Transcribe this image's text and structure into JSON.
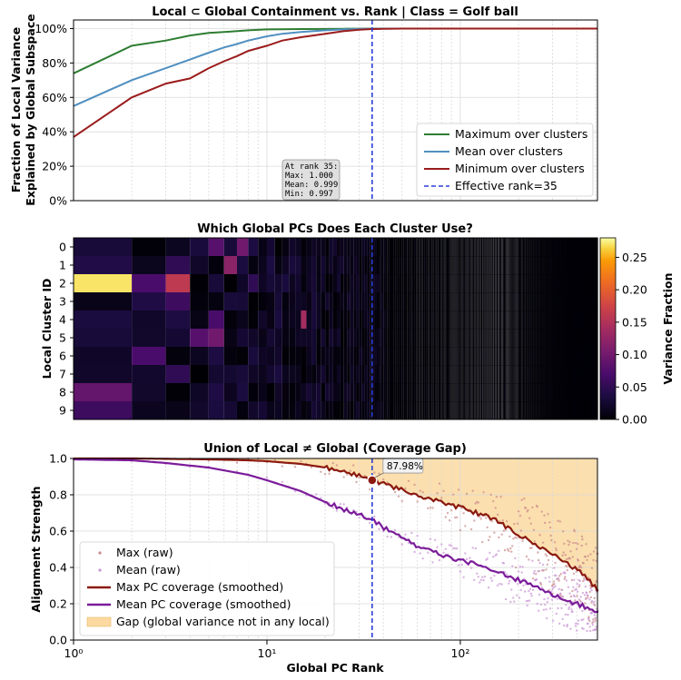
{
  "chart_data": [
    {
      "type": "line",
      "title": "Local ⊂ Global Containment vs. Rank | Class = Golf ball",
      "xlabel": "",
      "ylabel": "Fraction of Local Variance\nExplained by Global Subspace",
      "xscale": "log",
      "xlim": [
        1,
        512
      ],
      "ylim": [
        0,
        1.05
      ],
      "yticks": [
        "0%",
        "20%",
        "40%",
        "60%",
        "80%",
        "100%"
      ],
      "x": [
        1,
        2,
        3,
        4,
        5,
        6,
        7,
        8,
        10,
        12,
        15,
        20,
        25,
        30,
        35,
        40,
        50,
        100,
        200,
        512
      ],
      "series": [
        {
          "name": "Maximum over clusters",
          "color": "#2e7d32",
          "values": [
            0.74,
            0.9,
            0.93,
            0.96,
            0.975,
            0.98,
            0.985,
            0.99,
            0.995,
            0.996,
            0.997,
            0.998,
            0.999,
            0.9995,
            1.0,
            1.0,
            1.0,
            1.0,
            1.0,
            1.0
          ]
        },
        {
          "name": "Mean over clusters",
          "color": "#4f8fc0",
          "values": [
            0.55,
            0.7,
            0.77,
            0.82,
            0.86,
            0.89,
            0.91,
            0.93,
            0.955,
            0.97,
            0.98,
            0.99,
            0.995,
            0.998,
            0.999,
            1.0,
            1.0,
            1.0,
            1.0,
            1.0
          ]
        },
        {
          "name": "Minimum over clusters",
          "color": "#9b1c1c",
          "values": [
            0.37,
            0.6,
            0.68,
            0.71,
            0.77,
            0.81,
            0.84,
            0.87,
            0.9,
            0.93,
            0.95,
            0.97,
            0.985,
            0.993,
            0.997,
            0.999,
            1.0,
            1.0,
            1.0,
            1.0
          ]
        }
      ],
      "vline": {
        "x": 35,
        "label": "Effective rank=35",
        "color": "#2b3fd6"
      },
      "annotation": {
        "lines": [
          "At rank 35:",
          "Max: 1.000",
          "Mean: 0.999",
          "Min: 0.997"
        ]
      },
      "legend_location": "lower-right"
    },
    {
      "type": "heatmap",
      "title": "Which Global PCs Does Each Cluster Use?",
      "ylabel": "Local Cluster ID",
      "rows": [
        "0",
        "1",
        "2",
        "3",
        "4",
        "5",
        "6",
        "7",
        "8",
        "9"
      ],
      "xscale": "log",
      "xlim": [
        1,
        512
      ],
      "colorbar": {
        "label": "Variance Fraction",
        "min": 0.0,
        "max": 0.28,
        "ticks": [
          "0.00",
          "0.05",
          "0.10",
          "0.15",
          "0.20",
          "0.25"
        ]
      },
      "highlights": [
        {
          "row": 2,
          "rank": 1,
          "value": 0.27
        },
        {
          "row": 2,
          "rank": 2,
          "value": 0.07
        },
        {
          "row": 2,
          "rank": 3,
          "value": 0.16
        },
        {
          "row": 8,
          "rank": 1,
          "value": 0.09
        },
        {
          "row": 9,
          "rank": 1,
          "value": 0.06
        },
        {
          "row": 1,
          "rank": 1,
          "value": 0.04
        },
        {
          "row": 1,
          "rank": 3,
          "value": 0.05
        },
        {
          "row": 1,
          "rank": 6,
          "value": 0.12
        },
        {
          "row": 6,
          "rank": 2,
          "value": 0.07
        },
        {
          "row": 5,
          "rank": 4,
          "value": 0.08
        },
        {
          "row": 5,
          "rank": 5,
          "value": 0.1
        },
        {
          "row": 4,
          "rank": 5,
          "value": 0.07
        },
        {
          "row": 4,
          "rank": 15,
          "value": 0.14
        },
        {
          "row": 0,
          "rank": 5,
          "value": 0.08
        },
        {
          "row": 0,
          "rank": 7,
          "value": 0.1
        },
        {
          "row": 3,
          "rank": 3,
          "value": 0.06
        },
        {
          "row": 2,
          "rank": 8,
          "value": 0.05
        },
        {
          "row": 7,
          "rank": 3,
          "value": 0.05
        }
      ],
      "vline": {
        "x": 35,
        "color": "#2b3fd6"
      }
    },
    {
      "type": "line",
      "title": "Union of Local ≠ Global (Coverage Gap)",
      "xlabel": "Global PC Rank",
      "ylabel": "Alignment Strength",
      "xscale": "log",
      "xlim": [
        1,
        512
      ],
      "ylim": [
        0.0,
        1.0
      ],
      "xticks": [
        "10⁰",
        "10¹",
        "10²"
      ],
      "yticks": [
        "0.0",
        "0.2",
        "0.4",
        "0.6",
        "0.8",
        "1.0"
      ],
      "x": [
        1,
        2,
        3,
        5,
        8,
        10,
        15,
        20,
        25,
        30,
        35,
        40,
        50,
        60,
        80,
        100,
        130,
        160,
        200,
        250,
        300,
        350,
        400,
        450,
        500,
        512
      ],
      "series": [
        {
          "name": "Max PC coverage (smoothed)",
          "color": "#8b1a10",
          "values": [
            1.0,
            1.0,
            0.998,
            0.995,
            0.99,
            0.985,
            0.97,
            0.95,
            0.93,
            0.905,
            0.88,
            0.86,
            0.83,
            0.8,
            0.76,
            0.73,
            0.69,
            0.65,
            0.58,
            0.52,
            0.47,
            0.43,
            0.39,
            0.34,
            0.29,
            0.28
          ]
        },
        {
          "name": "Mean PC coverage (smoothed)",
          "color": "#7b1b9a",
          "values": [
            0.995,
            0.99,
            0.975,
            0.95,
            0.91,
            0.88,
            0.82,
            0.76,
            0.72,
            0.69,
            0.66,
            0.62,
            0.56,
            0.52,
            0.47,
            0.44,
            0.41,
            0.37,
            0.33,
            0.29,
            0.25,
            0.22,
            0.2,
            0.18,
            0.16,
            0.15
          ]
        }
      ],
      "raw_series": [
        "Max (raw)",
        "Mean (raw)"
      ],
      "fill_label": "Gap (global variance not in any local)",
      "fill_color": "#fcd9a0",
      "vline": {
        "x": 35,
        "color": "#2b3fd6"
      },
      "annotation": {
        "x": 35,
        "y": 0.8798,
        "text": "87.98%"
      },
      "legend_location": "lower-left"
    }
  ]
}
